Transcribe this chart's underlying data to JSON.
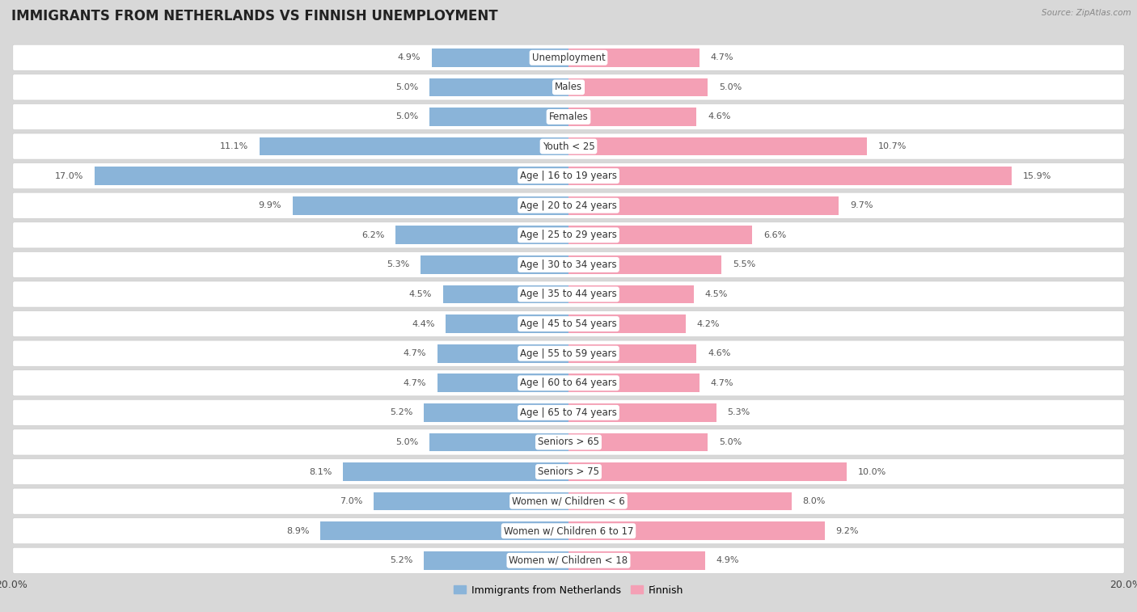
{
  "title": "IMMIGRANTS FROM NETHERLANDS VS FINNISH UNEMPLOYMENT",
  "source": "Source: ZipAtlas.com",
  "categories": [
    "Unemployment",
    "Males",
    "Females",
    "Youth < 25",
    "Age | 16 to 19 years",
    "Age | 20 to 24 years",
    "Age | 25 to 29 years",
    "Age | 30 to 34 years",
    "Age | 35 to 44 years",
    "Age | 45 to 54 years",
    "Age | 55 to 59 years",
    "Age | 60 to 64 years",
    "Age | 65 to 74 years",
    "Seniors > 65",
    "Seniors > 75",
    "Women w/ Children < 6",
    "Women w/ Children 6 to 17",
    "Women w/ Children < 18"
  ],
  "left_values": [
    4.9,
    5.0,
    5.0,
    11.1,
    17.0,
    9.9,
    6.2,
    5.3,
    4.5,
    4.4,
    4.7,
    4.7,
    5.2,
    5.0,
    8.1,
    7.0,
    8.9,
    5.2
  ],
  "right_values": [
    4.7,
    5.0,
    4.6,
    10.7,
    15.9,
    9.7,
    6.6,
    5.5,
    4.5,
    4.2,
    4.6,
    4.7,
    5.3,
    5.0,
    10.0,
    8.0,
    9.2,
    4.9
  ],
  "left_color": "#8ab4d9",
  "right_color": "#f4a0b5",
  "left_label": "Immigrants from Netherlands",
  "right_label": "Finnish",
  "xlim": 20.0,
  "bg_color": "#d8d8d8",
  "row_bg_color": "#ffffff",
  "title_fontsize": 12,
  "label_fontsize": 8.5,
  "value_fontsize": 8.0,
  "tick_fontsize": 9
}
